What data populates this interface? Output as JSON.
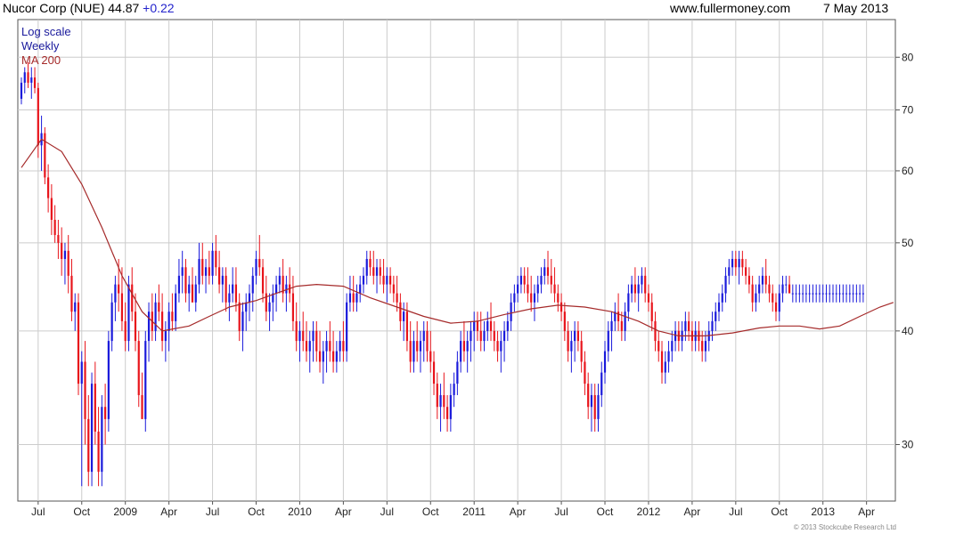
{
  "header": {
    "ticker_text": "Nucor Corp (NUE) 44.87",
    "change_text": "+0.22",
    "source_text": "www.fullermoney.com",
    "date_text": "7 May 2013"
  },
  "legend": {
    "scale_text": "Log scale",
    "period_text": "Weekly",
    "ma_text": "MA 200"
  },
  "copyright": "© 2013 Stockcube Research Ltd",
  "colors": {
    "up": "#1a1adb",
    "down": "#e8141b",
    "ma": "#a52a2a",
    "grid": "#cccccc",
    "legend_text": "#1a1a9c",
    "change_text": "#2222cc"
  },
  "chart_data": {
    "type": "candlestick",
    "title": "Nucor Corp (NUE) 44.87 +0.22",
    "yscale": "log",
    "ylim": [
      26,
      88
    ],
    "y_ticks": [
      30,
      40,
      50,
      60,
      70,
      80
    ],
    "x_ticks": [
      "Jul",
      "Oct",
      "2009",
      "Apr",
      "Jul",
      "Oct",
      "2010",
      "Apr",
      "Jul",
      "Oct",
      "2011",
      "Apr",
      "Jul",
      "Oct",
      "2012",
      "Apr",
      "Jul",
      "Oct",
      "2013",
      "Apr"
    ],
    "x_tick_positions_weeks": [
      5,
      18,
      31,
      44,
      57,
      70,
      83,
      96,
      109,
      122,
      135,
      148,
      161,
      174,
      187,
      200,
      213,
      226,
      239,
      252
    ],
    "weeks_total": 260,
    "ohlc": [
      [
        72,
        76,
        71,
        75
      ],
      [
        75,
        78,
        73,
        77
      ],
      [
        77,
        79,
        74,
        75
      ],
      [
        75,
        78,
        72,
        76
      ],
      [
        76,
        78,
        73,
        74
      ],
      [
        74,
        75,
        62,
        64
      ],
      [
        64,
        69,
        60,
        66
      ],
      [
        66,
        67,
        58,
        59
      ],
      [
        59,
        61,
        54,
        56
      ],
      [
        56,
        58,
        51,
        53
      ],
      [
        53,
        55,
        50,
        51
      ],
      [
        51,
        53,
        48,
        50
      ],
      [
        50,
        52,
        46,
        48
      ],
      [
        48,
        50,
        45,
        49
      ],
      [
        49,
        51,
        44,
        46
      ],
      [
        46,
        48,
        41,
        42
      ],
      [
        42,
        44,
        40,
        43
      ],
      [
        43,
        44,
        34,
        35
      ],
      [
        35,
        38,
        27,
        37
      ],
      [
        37,
        39,
        30,
        32
      ],
      [
        32,
        34,
        27,
        28
      ],
      [
        28,
        36,
        27,
        35
      ],
      [
        35,
        37,
        30,
        31
      ],
      [
        31,
        33,
        27,
        28
      ],
      [
        28,
        34,
        27,
        33
      ],
      [
        33,
        35,
        30,
        32
      ],
      [
        32,
        40,
        31,
        39
      ],
      [
        39,
        44,
        38,
        43
      ],
      [
        43,
        46,
        41,
        45
      ],
      [
        45,
        48,
        42,
        44
      ],
      [
        44,
        47,
        40,
        41
      ],
      [
        41,
        43,
        38,
        39
      ],
      [
        39,
        46,
        38,
        45
      ],
      [
        45,
        47,
        41,
        42
      ],
      [
        42,
        44,
        38,
        39
      ],
      [
        39,
        40,
        33,
        34
      ],
      [
        34,
        36,
        32,
        32
      ],
      [
        32,
        40,
        31,
        39
      ],
      [
        39,
        43,
        37,
        42
      ],
      [
        42,
        44,
        39,
        40
      ],
      [
        40,
        44,
        39,
        43
      ],
      [
        43,
        45,
        41,
        42
      ],
      [
        42,
        44,
        38,
        39
      ],
      [
        39,
        41,
        37,
        40
      ],
      [
        40,
        43,
        38,
        42
      ],
      [
        42,
        44,
        40,
        41
      ],
      [
        41,
        45,
        40,
        44
      ],
      [
        44,
        48,
        43,
        46
      ],
      [
        46,
        49,
        44,
        47
      ],
      [
        47,
        48,
        43,
        44
      ],
      [
        44,
        46,
        42,
        45
      ],
      [
        45,
        47,
        43,
        43
      ],
      [
        43,
        46,
        42,
        45
      ],
      [
        45,
        50,
        44,
        48
      ],
      [
        48,
        50,
        45,
        46
      ],
      [
        46,
        48,
        44,
        47
      ],
      [
        47,
        49,
        45,
        46
      ],
      [
        46,
        50,
        45,
        49
      ],
      [
        49,
        51,
        46,
        47
      ],
      [
        47,
        49,
        44,
        45
      ],
      [
        45,
        47,
        43,
        46
      ],
      [
        46,
        47,
        42,
        43
      ],
      [
        43,
        45,
        41,
        44
      ],
      [
        44,
        47,
        43,
        45
      ],
      [
        45,
        47,
        42,
        43
      ],
      [
        43,
        44,
        39,
        40
      ],
      [
        40,
        43,
        38,
        42
      ],
      [
        42,
        44,
        40,
        43
      ],
      [
        43,
        45,
        41,
        44
      ],
      [
        44,
        47,
        42,
        46
      ],
      [
        46,
        49,
        45,
        48
      ],
      [
        48,
        51,
        46,
        47
      ],
      [
        47,
        48,
        43,
        44
      ],
      [
        44,
        46,
        41,
        42
      ],
      [
        42,
        44,
        40,
        43
      ],
      [
        43,
        45,
        41,
        44
      ],
      [
        44,
        46,
        42,
        45
      ],
      [
        45,
        47,
        44,
        46
      ],
      [
        46,
        48,
        43,
        44
      ],
      [
        44,
        46,
        42,
        45
      ],
      [
        45,
        47,
        43,
        44
      ],
      [
        44,
        46,
        40,
        41
      ],
      [
        41,
        43,
        38,
        39
      ],
      [
        39,
        41,
        37,
        40
      ],
      [
        40,
        42,
        38,
        39
      ],
      [
        39,
        41,
        37,
        38
      ],
      [
        38,
        40,
        36,
        39
      ],
      [
        39,
        41,
        37,
        40
      ],
      [
        40,
        41,
        37,
        38
      ],
      [
        38,
        40,
        36,
        37
      ],
      [
        37,
        39,
        35,
        38
      ],
      [
        38,
        40,
        36,
        39
      ],
      [
        39,
        41,
        37,
        38
      ],
      [
        38,
        40,
        36,
        37
      ],
      [
        37,
        39,
        36,
        38
      ],
      [
        38,
        40,
        37,
        39
      ],
      [
        39,
        41,
        37,
        38
      ],
      [
        38,
        44,
        37,
        43
      ],
      [
        43,
        46,
        42,
        44
      ],
      [
        44,
        46,
        42,
        43
      ],
      [
        43,
        45,
        42,
        44
      ],
      [
        44,
        46,
        43,
        45
      ],
      [
        45,
        47,
        44,
        46
      ],
      [
        46,
        49,
        45,
        48
      ],
      [
        48,
        49,
        46,
        47
      ],
      [
        47,
        49,
        45,
        46
      ],
      [
        46,
        48,
        44,
        47
      ],
      [
        47,
        48,
        45,
        46
      ],
      [
        46,
        48,
        44,
        45
      ],
      [
        45,
        47,
        43,
        46
      ],
      [
        46,
        47,
        44,
        45
      ],
      [
        45,
        46,
        43,
        44
      ],
      [
        44,
        46,
        42,
        43
      ],
      [
        43,
        44,
        40,
        41
      ],
      [
        41,
        43,
        39,
        42
      ],
      [
        42,
        43,
        38,
        39
      ],
      [
        39,
        41,
        36,
        37
      ],
      [
        37,
        40,
        36,
        39
      ],
      [
        39,
        41,
        37,
        38
      ],
      [
        38,
        40,
        36,
        39
      ],
      [
        39,
        41,
        37,
        40
      ],
      [
        40,
        41,
        37,
        38
      ],
      [
        38,
        40,
        36,
        37
      ],
      [
        37,
        38,
        34,
        35
      ],
      [
        35,
        36,
        32,
        33
      ],
      [
        33,
        35,
        31,
        34
      ],
      [
        34,
        36,
        32,
        33
      ],
      [
        33,
        34,
        31,
        32
      ],
      [
        32,
        35,
        31,
        34
      ],
      [
        34,
        36,
        33,
        35
      ],
      [
        35,
        38,
        34,
        37
      ],
      [
        37,
        40,
        36,
        39
      ],
      [
        39,
        41,
        37,
        38
      ],
      [
        38,
        40,
        36,
        39
      ],
      [
        39,
        41,
        37,
        40
      ],
      [
        40,
        42,
        38,
        41
      ],
      [
        41,
        42,
        39,
        40
      ],
      [
        40,
        42,
        38,
        39
      ],
      [
        39,
        41,
        38,
        40
      ],
      [
        40,
        42,
        39,
        41
      ],
      [
        41,
        43,
        39,
        40
      ],
      [
        40,
        41,
        38,
        39
      ],
      [
        39,
        40,
        37,
        38
      ],
      [
        38,
        40,
        36,
        39
      ],
      [
        39,
        41,
        37,
        40
      ],
      [
        40,
        42,
        39,
        41
      ],
      [
        41,
        44,
        40,
        43
      ],
      [
        43,
        45,
        42,
        44
      ],
      [
        44,
        46,
        43,
        45
      ],
      [
        45,
        47,
        44,
        46
      ],
      [
        46,
        47,
        44,
        45
      ],
      [
        45,
        47,
        43,
        44
      ],
      [
        44,
        46,
        42,
        43
      ],
      [
        43,
        45,
        41,
        44
      ],
      [
        44,
        46,
        43,
        45
      ],
      [
        45,
        47,
        44,
        46
      ],
      [
        46,
        48,
        45,
        47
      ],
      [
        47,
        49,
        45,
        46
      ],
      [
        46,
        48,
        44,
        45
      ],
      [
        45,
        47,
        43,
        44
      ],
      [
        44,
        45,
        42,
        43
      ],
      [
        43,
        44,
        41,
        42
      ],
      [
        42,
        43,
        39,
        40
      ],
      [
        40,
        41,
        37,
        38
      ],
      [
        38,
        40,
        36,
        39
      ],
      [
        39,
        41,
        37,
        40
      ],
      [
        40,
        41,
        38,
        39
      ],
      [
        39,
        40,
        36,
        37
      ],
      [
        37,
        38,
        34,
        35
      ],
      [
        35,
        36,
        32,
        33
      ],
      [
        33,
        35,
        31,
        34
      ],
      [
        34,
        35,
        31,
        32
      ],
      [
        32,
        35,
        31,
        34
      ],
      [
        34,
        37,
        33,
        36
      ],
      [
        36,
        39,
        35,
        38
      ],
      [
        38,
        41,
        37,
        40
      ],
      [
        40,
        42,
        38,
        41
      ],
      [
        41,
        43,
        40,
        42
      ],
      [
        42,
        44,
        40,
        41
      ],
      [
        41,
        42,
        39,
        40
      ],
      [
        40,
        43,
        39,
        42
      ],
      [
        42,
        45,
        41,
        44
      ],
      [
        44,
        46,
        43,
        45
      ],
      [
        45,
        47,
        43,
        44
      ],
      [
        44,
        46,
        42,
        45
      ],
      [
        45,
        47,
        44,
        46
      ],
      [
        46,
        47,
        43,
        44
      ],
      [
        44,
        45,
        42,
        43
      ],
      [
        43,
        44,
        40,
        41
      ],
      [
        41,
        42,
        38,
        39
      ],
      [
        39,
        40,
        37,
        38
      ],
      [
        38,
        39,
        35,
        36
      ],
      [
        36,
        38,
        35,
        37
      ],
      [
        37,
        39,
        36,
        38
      ],
      [
        38,
        40,
        37,
        39
      ],
      [
        39,
        41,
        38,
        40
      ],
      [
        40,
        41,
        38,
        39
      ],
      [
        39,
        41,
        38,
        40
      ],
      [
        40,
        42,
        39,
        41
      ],
      [
        41,
        42,
        39,
        40
      ],
      [
        40,
        41,
        38,
        39
      ],
      [
        39,
        41,
        38,
        40
      ],
      [
        40,
        41,
        38,
        39
      ],
      [
        39,
        40,
        37,
        38
      ],
      [
        38,
        40,
        37,
        39
      ],
      [
        39,
        41,
        38,
        40
      ],
      [
        40,
        42,
        39,
        41
      ],
      [
        41,
        43,
        40,
        42
      ],
      [
        42,
        44,
        41,
        43
      ],
      [
        43,
        45,
        42,
        44
      ],
      [
        44,
        47,
        43,
        46
      ],
      [
        46,
        48,
        45,
        47
      ],
      [
        47,
        49,
        46,
        48
      ],
      [
        48,
        49,
        46,
        47
      ],
      [
        47,
        49,
        45,
        48
      ],
      [
        48,
        49,
        46,
        47
      ],
      [
        47,
        48,
        45,
        46
      ],
      [
        46,
        47,
        44,
        45
      ],
      [
        45,
        46,
        42,
        43
      ],
      [
        43,
        45,
        42,
        44
      ],
      [
        44,
        46,
        43,
        45
      ],
      [
        45,
        47,
        44,
        46
      ],
      [
        46,
        48,
        44,
        45
      ],
      [
        45,
        46,
        43,
        44
      ],
      [
        44,
        45,
        42,
        43
      ],
      [
        43,
        44,
        41,
        42
      ],
      [
        42,
        45,
        41,
        44
      ],
      [
        44,
        46,
        43,
        45
      ],
      [
        45,
        46,
        44,
        45
      ],
      [
        45,
        46,
        44,
        44
      ],
      [
        44,
        45,
        43,
        44
      ],
      [
        44,
        45,
        43,
        44
      ],
      [
        44,
        45,
        43,
        44
      ],
      [
        44,
        45,
        43,
        44
      ],
      [
        44,
        45,
        43,
        44
      ],
      [
        44,
        45,
        43,
        44
      ],
      [
        44,
        45,
        43,
        44
      ],
      [
        44,
        45,
        43,
        44
      ],
      [
        44,
        45,
        43,
        44
      ],
      [
        44,
        45,
        43,
        44
      ],
      [
        44,
        45,
        43,
        44
      ],
      [
        44,
        45,
        43,
        44
      ],
      [
        44,
        45,
        43,
        44
      ],
      [
        44,
        45,
        43,
        44
      ],
      [
        44,
        45,
        43,
        44
      ],
      [
        44,
        45,
        43,
        44
      ],
      [
        44,
        45,
        43,
        44
      ],
      [
        44,
        45,
        43,
        44
      ],
      [
        44,
        45,
        43,
        44
      ],
      [
        44,
        45,
        43,
        44
      ],
      [
        44,
        45,
        43,
        44
      ],
      [
        44,
        45,
        43,
        44
      ]
    ],
    "ma200": [
      [
        0,
        60.5
      ],
      [
        6,
        65
      ],
      [
        12,
        63
      ],
      [
        18,
        58
      ],
      [
        24,
        52
      ],
      [
        30,
        46
      ],
      [
        36,
        42
      ],
      [
        42,
        40
      ],
      [
        50,
        40.5
      ],
      [
        56,
        41.5
      ],
      [
        62,
        42.5
      ],
      [
        70,
        43.2
      ],
      [
        76,
        44
      ],
      [
        82,
        44.8
      ],
      [
        88,
        45
      ],
      [
        96,
        44.8
      ],
      [
        104,
        43.5
      ],
      [
        112,
        42.5
      ],
      [
        120,
        41.5
      ],
      [
        128,
        40.8
      ],
      [
        136,
        41
      ],
      [
        144,
        41.7
      ],
      [
        152,
        42.3
      ],
      [
        160,
        42.7
      ],
      [
        168,
        42.5
      ],
      [
        176,
        42
      ],
      [
        184,
        41
      ],
      [
        190,
        40
      ],
      [
        196,
        39.5
      ],
      [
        204,
        39.5
      ],
      [
        212,
        39.8
      ],
      [
        220,
        40.3
      ],
      [
        226,
        40.5
      ],
      [
        232,
        40.5
      ],
      [
        238,
        40.2
      ],
      [
        244,
        40.5
      ],
      [
        250,
        41.5
      ],
      [
        256,
        42.5
      ],
      [
        260,
        43
      ]
    ]
  }
}
